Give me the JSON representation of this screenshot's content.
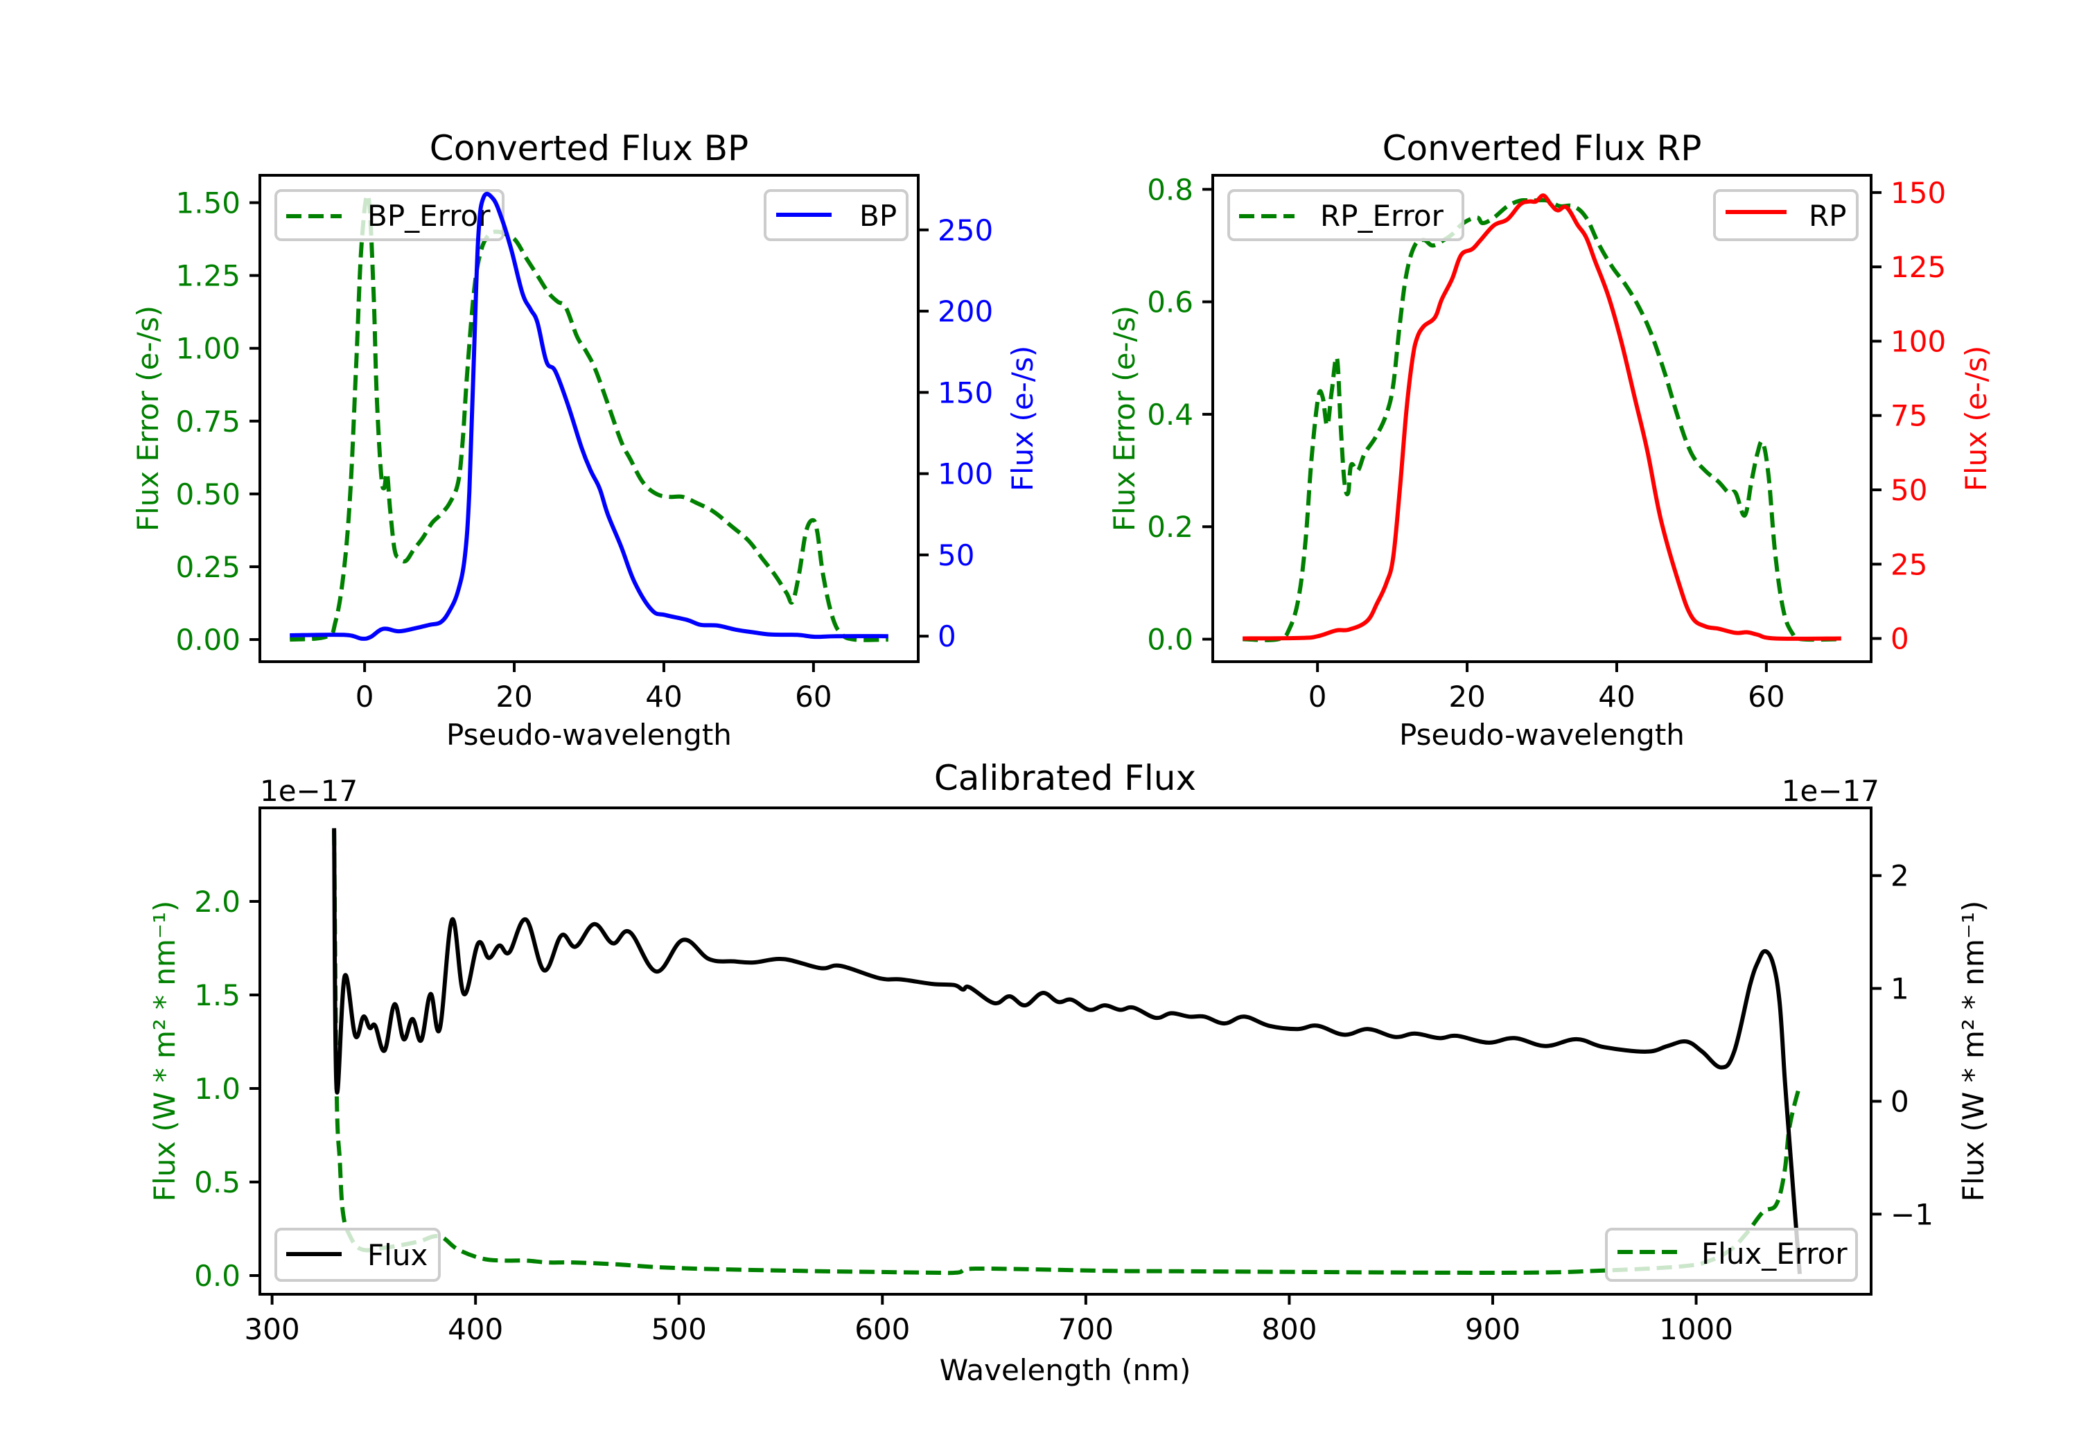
{
  "figure": {
    "background": "#ffffff"
  },
  "chart_data": [
    {
      "id": "bp",
      "type": "line",
      "title": "Converted Flux BP",
      "xlabel": "Pseudo-wavelength",
      "ylabel_left": "Flux Error (e-/s)",
      "ylabel_right": "Flux (e-/s)",
      "xlim": [
        -14,
        74
      ],
      "ylim_left": [
        -0.076,
        1.594
      ],
      "ylim_right": [
        -15.7,
        283.6
      ],
      "xticks": [
        0,
        20,
        40,
        60
      ],
      "xtick_labels": [
        "0",
        "20",
        "40",
        "60"
      ],
      "yticks_left": [
        0.0,
        0.25,
        0.5,
        0.75,
        1.0,
        1.25,
        1.5
      ],
      "ytick_labels_left": [
        "0.00",
        "0.25",
        "0.50",
        "0.75",
        "1.00",
        "1.25",
        "1.50"
      ],
      "yticks_right": [
        0,
        50,
        100,
        150,
        200,
        250
      ],
      "ytick_labels_right": [
        "0",
        "50",
        "100",
        "150",
        "200",
        "250"
      ],
      "left_color": "#008000",
      "right_color": "#0000ff",
      "legend_left": {
        "label": "BP_Error",
        "placement": "upper-left"
      },
      "legend_right": {
        "label": "BP",
        "placement": "upper-right"
      },
      "grid": false,
      "series": [
        {
          "name": "BP_Error",
          "axis": "left",
          "color": "#008000",
          "style": "dashed",
          "x": [
            -10,
            -5.1,
            -3.9,
            -2.8,
            -1.9,
            -1.1,
            -0.4,
            0.5,
            1.2,
            1.6,
            2.2,
            2.6,
            3.0,
            3.4,
            4.0,
            4.6,
            5.5,
            6.6,
            7.8,
            9.0,
            10.2,
            11.4,
            12.5,
            13.1,
            13.7,
            14.6,
            15.5,
            16.6,
            17.8,
            19.0,
            20.2,
            21.6,
            23.1,
            24.6,
            25.8,
            26.9,
            28.4,
            29.6,
            30.8,
            32.5,
            34.3,
            35.5,
            37.2,
            39.0,
            40.8,
            42.5,
            44.3,
            46.6,
            49.0,
            51.3,
            53.1,
            54.9,
            56.4,
            57.2,
            58.1,
            59.0,
            59.9,
            60.5,
            61.3,
            62.5,
            63.7,
            65.5,
            70
          ],
          "y": [
            0.0,
            0.01,
            0.06,
            0.23,
            0.51,
            0.96,
            1.36,
            1.52,
            1.19,
            0.85,
            0.57,
            0.52,
            0.57,
            0.45,
            0.31,
            0.28,
            0.27,
            0.31,
            0.35,
            0.4,
            0.43,
            0.47,
            0.54,
            0.68,
            0.91,
            1.19,
            1.33,
            1.39,
            1.4,
            1.39,
            1.37,
            1.31,
            1.25,
            1.19,
            1.16,
            1.14,
            1.04,
            0.99,
            0.93,
            0.81,
            0.68,
            0.62,
            0.54,
            0.5,
            0.49,
            0.49,
            0.47,
            0.44,
            0.39,
            0.34,
            0.28,
            0.22,
            0.16,
            0.13,
            0.23,
            0.37,
            0.41,
            0.37,
            0.22,
            0.08,
            0.02,
            0.0,
            0.0
          ]
        },
        {
          "name": "BP",
          "axis": "right",
          "color": "#0000ff",
          "style": "solid",
          "x": [
            -10,
            -2.8,
            -0.4,
            0.8,
            2.5,
            4.6,
            6.9,
            8.7,
            10.2,
            11.4,
            12.5,
            13.4,
            14.0,
            14.6,
            15.2,
            15.9,
            17.2,
            18.4,
            19.6,
            21.1,
            22.2,
            23.1,
            24.3,
            25.5,
            27.2,
            29.0,
            30.2,
            31.4,
            32.5,
            34.3,
            36.1,
            38.4,
            40.2,
            43.1,
            44.9,
            47.2,
            49.6,
            51.9,
            54.3,
            57.8,
            60.2,
            63.1,
            70
          ],
          "y": [
            0.5,
            0.8,
            -1.5,
            -0.5,
            4.5,
            3.0,
            5.0,
            7.0,
            8.7,
            16,
            28,
            49,
            89,
            171,
            246,
            270,
            269,
            256,
            238,
            211,
            201,
            193,
            169,
            163,
            142,
            116,
            102,
            91,
            75,
            55,
            33,
            16,
            13,
            10,
            7,
            6.5,
            4,
            2.4,
            1,
            0.8,
            -0.4,
            0,
            0
          ]
        }
      ]
    },
    {
      "id": "rp",
      "type": "line",
      "title": "Converted Flux RP",
      "xlabel": "Pseudo-wavelength",
      "ylabel_left": "Flux Error (e-/s)",
      "ylabel_right": "Flux (e-/s)",
      "xlim": [
        -14,
        74
      ],
      "ylim_left": [
        -0.04,
        0.825
      ],
      "ylim_right": [
        -7.8,
        155.8
      ],
      "xticks": [
        0,
        20,
        40,
        60
      ],
      "xtick_labels": [
        "0",
        "20",
        "40",
        "60"
      ],
      "yticks_left": [
        0.0,
        0.2,
        0.4,
        0.6,
        0.8
      ],
      "ytick_labels_left": [
        "0.0",
        "0.2",
        "0.4",
        "0.6",
        "0.8"
      ],
      "yticks_right": [
        0,
        25,
        50,
        75,
        100,
        125,
        150
      ],
      "ytick_labels_right": [
        "0",
        "25",
        "50",
        "75",
        "100",
        "125",
        "150"
      ],
      "left_color": "#008000",
      "right_color": "#ff0000",
      "legend_left": {
        "label": "RP_Error",
        "placement": "upper-left"
      },
      "legend_right": {
        "label": "RP",
        "placement": "upper-right"
      },
      "grid": false,
      "series": [
        {
          "name": "RP_Error",
          "axis": "left",
          "color": "#008000",
          "style": "dashed",
          "x": [
            -10,
            -5.2,
            -3.7,
            -2.5,
            -1.6,
            -0.8,
            0.1,
            0.7,
            1.3,
            1.9,
            2.6,
            3.1,
            3.6,
            4.1,
            4.5,
            5.4,
            6.3,
            7.8,
            9.2,
            10.1,
            11.0,
            11.9,
            13.0,
            14.2,
            15.4,
            16.9,
            18.0,
            19.5,
            21.3,
            22.1,
            23.6,
            25.4,
            27.1,
            28.6,
            30.7,
            32.4,
            34.2,
            35.9,
            37.7,
            39.5,
            41.2,
            43.0,
            44.7,
            46.5,
            48.3,
            50.0,
            51.8,
            53.6,
            55.0,
            55.9,
            57.1,
            58.0,
            58.8,
            59.5,
            60.3,
            61.2,
            62.3,
            63.5,
            64.7,
            70
          ],
          "y": [
            0.0,
            0.0,
            0.02,
            0.075,
            0.175,
            0.32,
            0.43,
            0.43,
            0.38,
            0.44,
            0.5,
            0.38,
            0.28,
            0.26,
            0.31,
            0.3,
            0.33,
            0.36,
            0.4,
            0.45,
            0.56,
            0.65,
            0.7,
            0.71,
            0.7,
            0.71,
            0.72,
            0.74,
            0.75,
            0.74,
            0.75,
            0.77,
            0.78,
            0.78,
            0.78,
            0.77,
            0.77,
            0.75,
            0.7,
            0.66,
            0.63,
            0.59,
            0.54,
            0.47,
            0.39,
            0.33,
            0.3,
            0.28,
            0.26,
            0.26,
            0.22,
            0.28,
            0.33,
            0.35,
            0.29,
            0.15,
            0.05,
            0.01,
            0.0,
            0.0
          ]
        },
        {
          "name": "RP",
          "axis": "right",
          "color": "#ff0000",
          "style": "solid",
          "x": [
            -10,
            -2.2,
            0.1,
            2.5,
            4.2,
            6.6,
            8.0,
            9.2,
            10.1,
            11.0,
            11.9,
            12.7,
            13.3,
            14.2,
            15.7,
            16.6,
            18.0,
            19.2,
            20.7,
            21.8,
            23.6,
            25.4,
            27.1,
            28.3,
            29.2,
            30.2,
            31.2,
            32.1,
            33.3,
            34.8,
            35.9,
            37.1,
            38.9,
            40.6,
            42.4,
            44.1,
            45.9,
            48.3,
            50.0,
            51.8,
            53.6,
            55.9,
            57.4,
            58.8,
            61.2,
            70
          ],
          "y": [
            0,
            0.2,
            0.8,
            2.7,
            3.0,
            5.8,
            12,
            18.6,
            27,
            50,
            77,
            94,
            101,
            105,
            108,
            114,
            121,
            129,
            131,
            134,
            139,
            141,
            146,
            147,
            147,
            149,
            146,
            144,
            145,
            139,
            135,
            127,
            115,
            100,
            81,
            63,
            40,
            18.6,
            7.4,
            4.1,
            3.3,
            1.9,
            2.1,
            1.3,
            0,
            0
          ]
        }
      ]
    },
    {
      "id": "calibrated",
      "type": "line",
      "title": "Calibrated Flux",
      "xlabel": "Wavelength (nm)",
      "ylabel_left": "Flux (W * m² * nm⁻¹)",
      "ylabel_right": "Flux (W * m² * nm⁻¹)",
      "offset_left": "1e−17",
      "offset_right": "1e−17",
      "xlim": [
        294,
        1086
      ],
      "ylim_left": [
        -0.1,
        2.5
      ],
      "ylim_right": [
        -1.71,
        2.6
      ],
      "xticks": [
        300,
        400,
        500,
        600,
        700,
        800,
        900,
        1000
      ],
      "xtick_labels": [
        "300",
        "400",
        "500",
        "600",
        "700",
        "800",
        "900",
        "1000"
      ],
      "yticks_left": [
        0.0,
        0.5,
        1.0,
        1.5,
        2.0
      ],
      "ytick_labels_left": [
        "0.0",
        "0.5",
        "1.0",
        "1.5",
        "2.0"
      ],
      "yticks_right": [
        -1,
        0,
        1,
        2
      ],
      "ytick_labels_right": [
        "−1",
        "0",
        "1",
        "2"
      ],
      "left_color": "#008000",
      "right_color": "#000000",
      "legend_left": {
        "label": "Flux",
        "placement": "lower-left"
      },
      "legend_right": {
        "label": "Flux_Error",
        "placement": "lower-right"
      },
      "grid": false,
      "series": [
        {
          "name": "Flux_Error",
          "axis": "left",
          "color": "#008000",
          "style": "dashed",
          "scale": "1e-17",
          "x": [
            330.5,
            331.7,
            333.3,
            334.8,
            337.9,
            344.0,
            356.2,
            371.4,
            382.1,
            391.3,
            403.5,
            414.2,
            424.8,
            435.5,
            447.7,
            469.0,
            499.5,
            560.5,
            621.4,
            636.7,
            645.8,
            712.8,
            745.7,
            902.3,
            954.5,
            993.7,
            1006.8,
            1017.2,
            1025.1,
            1032.9,
            1039.4,
            1043.4,
            1046.0,
            1050.7
          ],
          "y": [
            2.38,
            1.0,
            0.61,
            0.34,
            0.22,
            0.14,
            0.15,
            0.18,
            0.21,
            0.14,
            0.09,
            0.08,
            0.08,
            0.07,
            0.07,
            0.06,
            0.04,
            0.025,
            0.016,
            0.016,
            0.037,
            0.025,
            0.023,
            0.015,
            0.027,
            0.05,
            0.08,
            0.14,
            0.23,
            0.34,
            0.38,
            0.55,
            0.8,
            1.01
          ]
        },
        {
          "name": "Flux",
          "axis": "right",
          "color": "#000000",
          "style": "solid",
          "scale": "1e-17",
          "x": [
            330.5,
            331.7,
            335.7,
            340.9,
            344.9,
            348.0,
            350.7,
            355.3,
            360.2,
            364.7,
            369.0,
            373.3,
            377.9,
            382.4,
            388.5,
            394.3,
            401.3,
            406.5,
            411.7,
            416.6,
            424.8,
            433.7,
            442.2,
            449.2,
            458.4,
            467.5,
            475.8,
            488.9,
            502.0,
            514.8,
            527.0,
            536.7,
            551.4,
            569.6,
            579.4,
            598.6,
            609.3,
            624.5,
            635.3,
            639.6,
            642.9,
            654.9,
            662.5,
            670.1,
            678.8,
            686.4,
            693.0,
            701.7,
            709.3,
            716.9,
            723.4,
            734.3,
            742.0,
            750.7,
            758.3,
            768.1,
            777.9,
            789.9,
            804.0,
            813.8,
            826.9,
            838.8,
            851.9,
            861.7,
            873.7,
            882.4,
            897.6,
            910.7,
            925.9,
            941.2,
            954.7,
            975.6,
            986.0,
            995.2,
            1003.0,
            1012.2,
            1018.7,
            1026.5,
            1030.5,
            1033.9,
            1037.8,
            1041.0,
            1043.6,
            1046.2,
            1050.9
          ],
          "y": [
            2.42,
            0.11,
            1.11,
            0.58,
            0.75,
            0.65,
            0.67,
            0.45,
            0.86,
            0.55,
            0.73,
            0.54,
            0.95,
            0.64,
            1.61,
            0.95,
            1.4,
            1.27,
            1.38,
            1.32,
            1.61,
            1.16,
            1.47,
            1.37,
            1.57,
            1.4,
            1.5,
            1.15,
            1.43,
            1.26,
            1.24,
            1.23,
            1.26,
            1.18,
            1.2,
            1.09,
            1.08,
            1.04,
            1.03,
            0.99,
            1.01,
            0.87,
            0.93,
            0.85,
            0.96,
            0.88,
            0.9,
            0.81,
            0.85,
            0.81,
            0.83,
            0.74,
            0.78,
            0.75,
            0.75,
            0.69,
            0.75,
            0.67,
            0.64,
            0.67,
            0.59,
            0.64,
            0.57,
            0.6,
            0.56,
            0.58,
            0.52,
            0.56,
            0.49,
            0.55,
            0.48,
            0.44,
            0.49,
            0.53,
            0.44,
            0.3,
            0.44,
            1.03,
            1.24,
            1.33,
            1.22,
            0.88,
            0.19,
            -0.44,
            -1.53
          ]
        }
      ]
    }
  ]
}
